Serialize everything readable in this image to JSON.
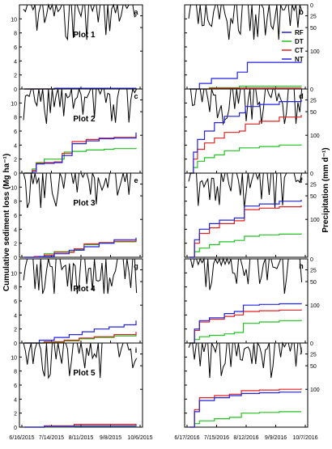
{
  "ylabel_left": "Cumulative sediment loss (Mg ha⁻¹)",
  "ylabel_right": "Precipitation (mm d⁻¹)",
  "colors": {
    "RF": "#1f1fcf",
    "DT": "#22c022",
    "CT": "#e02020",
    "NT": "#2222dd",
    "precip": "#000000"
  },
  "legend": [
    "RF",
    "DT",
    "CT",
    "NT"
  ],
  "chart_data": {
    "type": "line",
    "x_ticks_2015": [
      "6/16/2015",
      "7/14/2015",
      "8/11/2015",
      "9/8/2015",
      "10/6/2015"
    ],
    "x_ticks_2016": [
      "6/17/2016",
      "7/15/2016",
      "8/12/2016",
      "9/9/2016",
      "10/7/2016"
    ],
    "left_yticks": [
      "0",
      "2",
      "4",
      "6",
      "8",
      "10"
    ],
    "right_yticks": [
      "0",
      "25",
      "50",
      "100"
    ],
    "ylim_left": [
      0,
      12
    ],
    "series_names": [
      "RF",
      "DT",
      "CT",
      "NT"
    ],
    "panels": [
      {
        "letter": "a",
        "plot": "Plot 1",
        "year": 2015,
        "series": [
          {
            "name": "DT",
            "x": [
              0,
              10,
              30,
              112
            ],
            "y": [
              0,
              0,
              0.05,
              0.1
            ]
          },
          {
            "name": "CT",
            "x": [
              0,
              10,
              30,
              112
            ],
            "y": [
              0,
              0,
              0.05,
              0.1
            ]
          },
          {
            "name": "NT",
            "x": [
              0,
              10,
              30,
              112
            ],
            "y": [
              0,
              0,
              0.1,
              0.15
            ]
          }
        ]
      },
      {
        "letter": "b",
        "plot": "",
        "year": 2016,
        "series": [
          {
            "name": "DT",
            "x": [
              0,
              20,
              50,
              112
            ],
            "y": [
              0,
              0.2,
              0.4,
              0.5
            ]
          },
          {
            "name": "CT",
            "x": [
              0,
              20,
              50,
              112
            ],
            "y": [
              0,
              0.1,
              0.15,
              0.2
            ]
          },
          {
            "name": "NT",
            "x": [
              0,
              10,
              22,
              48,
              58,
              112
            ],
            "y": [
              0,
              0.8,
              1.5,
              2.4,
              3.8,
              3.9
            ]
          }
        ]
      },
      {
        "letter": "c",
        "plot": "Plot 2",
        "year": 2015,
        "series": [
          {
            "name": "DT",
            "x": [
              0,
              8,
              12,
              20,
              30,
              40,
              48,
              62,
              80,
              90,
              112
            ],
            "y": [
              0,
              0.6,
              1.5,
              2.0,
              2.0,
              3.0,
              3.1,
              3.3,
              3.4,
              3.5,
              3.6
            ]
          },
          {
            "name": "CT",
            "x": [
              0,
              8,
              12,
              20,
              30,
              38,
              48,
              62,
              75,
              90,
              112
            ],
            "y": [
              0,
              0.4,
              1.4,
              1.5,
              1.6,
              2.8,
              4.5,
              4.8,
              5.0,
              5.1,
              5.5
            ]
          },
          {
            "name": "NT",
            "x": [
              0,
              8,
              12,
              20,
              30,
              38,
              48,
              62,
              75,
              90,
              112
            ],
            "y": [
              0,
              0.2,
              1.3,
              1.4,
              1.5,
              2.5,
              4.2,
              4.6,
              4.9,
              5.0,
              5.8
            ]
          }
        ]
      },
      {
        "letter": "d",
        "plot": "",
        "year": 2016,
        "series": [
          {
            "name": "DT",
            "x": [
              0,
              4,
              8,
              15,
              25,
              35,
              50,
              70,
              90,
              112
            ],
            "y": [
              0,
              0.8,
              1.7,
              2.2,
              2.6,
              3.2,
              3.6,
              3.8,
              4.0,
              4.1
            ]
          },
          {
            "name": "CT",
            "x": [
              0,
              4,
              8,
              15,
              25,
              35,
              50,
              56,
              70,
              90,
              112
            ],
            "y": [
              0,
              2.0,
              3.4,
              4.3,
              5.0,
              5.8,
              6.0,
              7.0,
              7.4,
              8.0,
              8.3
            ]
          },
          {
            "name": "NT",
            "x": [
              0,
              4,
              8,
              15,
              25,
              35,
              50,
              56,
              70,
              90,
              112
            ],
            "y": [
              0,
              3.0,
              4.8,
              6.0,
              7.2,
              8.1,
              8.6,
              9.5,
              9.8,
              10.2,
              10.5
            ]
          }
        ]
      },
      {
        "letter": "e",
        "plot": "Plot 3",
        "year": 2015,
        "series": [
          {
            "name": "DT",
            "x": [
              0,
              10,
              20,
              30,
              50,
              60,
              75,
              90,
              112
            ],
            "y": [
              0,
              0.1,
              0.5,
              0.8,
              1.1,
              1.8,
              2.0,
              2.2,
              2.4
            ]
          },
          {
            "name": "CT",
            "x": [
              0,
              10,
              20,
              30,
              50,
              60,
              75,
              90,
              112
            ],
            "y": [
              0,
              0.1,
              0.3,
              0.7,
              1.2,
              1.9,
              2.1,
              2.3,
              2.6
            ]
          },
          {
            "name": "NT",
            "x": [
              0,
              15,
              30,
              45,
              60,
              75,
              90,
              112
            ],
            "y": [
              0,
              0.1,
              0.5,
              1.0,
              1.5,
              2.0,
              2.5,
              2.8
            ]
          }
        ]
      },
      {
        "letter": "f",
        "plot": "",
        "year": 2016,
        "series": [
          {
            "name": "DT",
            "x": [
              0,
              5,
              10,
              20,
              30,
              45,
              55,
              70,
              90,
              112
            ],
            "y": [
              0,
              0.8,
              1.3,
              1.8,
              2.2,
              2.4,
              3.0,
              3.2,
              3.3,
              3.4
            ]
          },
          {
            "name": "CT",
            "x": [
              0,
              5,
              10,
              20,
              30,
              45,
              55,
              70,
              90,
              112
            ],
            "y": [
              0,
              2.0,
              3.4,
              4.2,
              4.8,
              5.2,
              6.8,
              7.0,
              7.2,
              7.4
            ]
          },
          {
            "name": "NT",
            "x": [
              0,
              5,
              10,
              20,
              30,
              45,
              55,
              70,
              90,
              112
            ],
            "y": [
              0,
              2.5,
              4.0,
              4.8,
              5.3,
              5.6,
              7.3,
              7.6,
              8.0,
              8.2
            ]
          }
        ]
      },
      {
        "letter": "g",
        "plot": "Plot 4",
        "year": 2015,
        "series": [
          {
            "name": "DT",
            "x": [
              0,
              20,
              40,
              55,
              70,
              90,
              112
            ],
            "y": [
              0,
              0.1,
              0.3,
              0.6,
              0.8,
              1.0,
              1.2
            ]
          },
          {
            "name": "CT",
            "x": [
              0,
              20,
              40,
              55,
              70,
              90,
              112
            ],
            "y": [
              0,
              0.2,
              0.4,
              0.7,
              0.9,
              1.2,
              1.6
            ]
          },
          {
            "name": "NT",
            "x": [
              0,
              15,
              30,
              45,
              58,
              70,
              85,
              100,
              112
            ],
            "y": [
              0,
              0.4,
              0.8,
              1.2,
              1.6,
              2.0,
              2.3,
              2.6,
              3.2
            ]
          }
        ]
      },
      {
        "letter": "h",
        "plot": "",
        "year": 2016,
        "series": [
          {
            "name": "DT",
            "x": [
              0,
              5,
              10,
              20,
              35,
              45,
              54,
              70,
              90,
              112
            ],
            "y": [
              0,
              0.5,
              0.9,
              1.1,
              1.3,
              1.5,
              2.8,
              3.0,
              3.2,
              3.3
            ]
          },
          {
            "name": "CT",
            "x": [
              0,
              5,
              10,
              20,
              35,
              45,
              54,
              70,
              90,
              112
            ],
            "y": [
              0,
              1.8,
              3.0,
              3.4,
              3.8,
              4.0,
              4.5,
              4.6,
              4.7,
              4.8
            ]
          },
          {
            "name": "NT",
            "x": [
              0,
              5,
              10,
              20,
              35,
              45,
              54,
              70,
              90,
              112
            ],
            "y": [
              0,
              2.0,
              3.2,
              3.6,
              4.2,
              4.5,
              5.4,
              5.5,
              5.6,
              5.7
            ]
          }
        ]
      },
      {
        "letter": "i",
        "plot": "Plot 5",
        "year": 2015,
        "series": [
          {
            "name": "DT",
            "x": [
              0,
              20,
              50,
              112
            ],
            "y": [
              0,
              0.05,
              0.15,
              0.2
            ]
          },
          {
            "name": "CT",
            "x": [
              0,
              20,
              50,
              112
            ],
            "y": [
              0,
              0.2,
              0.4,
              0.5
            ]
          },
          {
            "name": "NT",
            "x": [
              0,
              20,
              50,
              112
            ],
            "y": [
              0,
              0.1,
              0.2,
              0.3
            ]
          }
        ]
      },
      {
        "letter": "j",
        "plot": "",
        "year": 2016,
        "series": [
          {
            "name": "DT",
            "x": [
              0,
              5,
              10,
              25,
              40,
              52,
              70,
              90,
              112
            ],
            "y": [
              0,
              0.5,
              0.9,
              1.2,
              1.4,
              2.0,
              2.1,
              2.2,
              2.2
            ]
          },
          {
            "name": "CT",
            "x": [
              0,
              5,
              10,
              25,
              40,
              52,
              70,
              90,
              112
            ],
            "y": [
              0,
              2.5,
              4.2,
              4.5,
              4.7,
              5.2,
              5.3,
              5.4,
              5.5
            ]
          },
          {
            "name": "NT",
            "x": [
              0,
              5,
              10,
              25,
              40,
              52,
              70,
              90,
              112
            ],
            "y": [
              0,
              2.2,
              3.8,
              4.2,
              4.5,
              4.8,
              4.9,
              5.0,
              5.0
            ]
          }
        ]
      }
    ]
  }
}
